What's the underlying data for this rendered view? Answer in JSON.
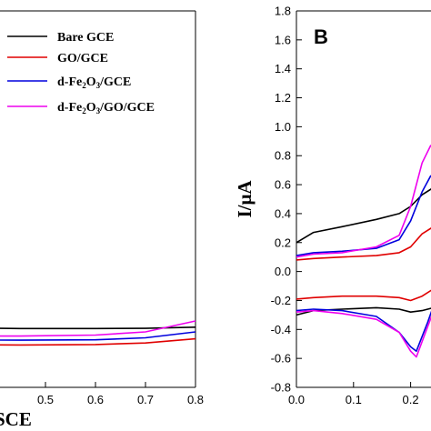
{
  "chart_data": [
    {
      "panel": "A",
      "type": "line",
      "xlabel_visible": "SCE",
      "xlim": [
        0.3,
        0.8
      ],
      "ylim": [
        -0.3,
        1.6
      ],
      "x_ticks": [
        "0.5",
        "0.6",
        "0.7",
        "0.8"
      ],
      "legend": {
        "placement": "top",
        "entries": [
          {
            "name": "Bare GCE",
            "color": "#000000"
          },
          {
            "name": "GO/GCE",
            "color": "#e00000"
          },
          {
            "name": "d-Fe2O3/GCE",
            "color": "#0000dd"
          },
          {
            "name": "d-Fe2O3/GO/GCE",
            "color": "#ee00ee"
          }
        ]
      },
      "series": [
        {
          "name": "Bare GCE",
          "color": "#000000",
          "x": [
            0.3,
            0.45,
            0.6,
            0.7,
            0.8
          ],
          "y": [
            0.0,
            -0.003,
            -0.003,
            -0.002,
            0.004
          ]
        },
        {
          "name": "GO/GCE",
          "color": "#e00000",
          "x": [
            0.3,
            0.45,
            0.6,
            0.7,
            0.8
          ],
          "y": [
            -0.085,
            -0.086,
            -0.084,
            -0.076,
            -0.055
          ]
        },
        {
          "name": "d-Fe2O3/GCE",
          "color": "#0000dd",
          "x": [
            0.3,
            0.45,
            0.6,
            0.7,
            0.8
          ],
          "y": [
            -0.06,
            -0.062,
            -0.06,
            -0.05,
            -0.02
          ]
        },
        {
          "name": "d-Fe2O3/GO/GCE",
          "color": "#ee00ee",
          "x": [
            0.3,
            0.45,
            0.6,
            0.7,
            0.8
          ],
          "y": [
            -0.04,
            -0.041,
            -0.036,
            -0.02,
            0.035
          ]
        }
      ]
    },
    {
      "panel": "B",
      "type": "line",
      "title": "B",
      "ylabel": "I/μA",
      "xlim": [
        0.0,
        0.25
      ],
      "ylim": [
        -0.8,
        1.8
      ],
      "x_ticks": [
        "0.0",
        "0.1",
        "0.2"
      ],
      "y_ticks": [
        "-0.8",
        "-0.6",
        "-0.4",
        "-0.2",
        "0.0",
        "0.2",
        "0.4",
        "0.6",
        "0.8",
        "1.0",
        "1.2",
        "1.4",
        "1.6",
        "1.8"
      ],
      "series": [
        {
          "name": "Bare GCE",
          "color": "#000000",
          "segment": "anodic",
          "x": [
            0.0,
            0.03,
            0.08,
            0.14,
            0.18,
            0.2,
            0.22,
            0.24
          ],
          "y": [
            0.2,
            0.27,
            0.31,
            0.36,
            0.4,
            0.45,
            0.53,
            0.58
          ]
        },
        {
          "name": "Bare GCE",
          "color": "#000000",
          "segment": "cathodic",
          "x": [
            0.24,
            0.22,
            0.2,
            0.18,
            0.14,
            0.08,
            0.03,
            0.0
          ],
          "y": [
            -0.25,
            -0.27,
            -0.28,
            -0.26,
            -0.25,
            -0.26,
            -0.27,
            -0.3
          ]
        },
        {
          "name": "GO/GCE",
          "color": "#e00000",
          "segment": "anodic",
          "x": [
            0.0,
            0.03,
            0.08,
            0.14,
            0.18,
            0.2,
            0.22,
            0.24
          ],
          "y": [
            0.08,
            0.09,
            0.1,
            0.11,
            0.13,
            0.17,
            0.26,
            0.31
          ]
        },
        {
          "name": "GO/GCE",
          "color": "#e00000",
          "segment": "cathodic",
          "x": [
            0.24,
            0.22,
            0.2,
            0.18,
            0.14,
            0.08,
            0.03,
            0.0
          ],
          "y": [
            -0.12,
            -0.17,
            -0.2,
            -0.18,
            -0.17,
            -0.17,
            -0.18,
            -0.19
          ]
        },
        {
          "name": "d-Fe2O3/GCE",
          "color": "#0000dd",
          "segment": "anodic",
          "x": [
            0.0,
            0.03,
            0.08,
            0.14,
            0.18,
            0.2,
            0.22,
            0.235,
            0.245
          ],
          "y": [
            0.11,
            0.13,
            0.14,
            0.16,
            0.22,
            0.35,
            0.55,
            0.66,
            0.62
          ]
        },
        {
          "name": "d-Fe2O3/GCE",
          "color": "#0000dd",
          "segment": "cathodic",
          "x": [
            0.245,
            0.23,
            0.21,
            0.2,
            0.18,
            0.14,
            0.08,
            0.03,
            0.0
          ],
          "y": [
            -0.18,
            -0.35,
            -0.55,
            -0.52,
            -0.42,
            -0.31,
            -0.27,
            -0.26,
            -0.27
          ]
        },
        {
          "name": "d-Fe2O3/GO/GCE",
          "color": "#ee00ee",
          "segment": "anodic",
          "x": [
            0.0,
            0.03,
            0.08,
            0.14,
            0.18,
            0.2,
            0.22,
            0.235,
            0.245
          ],
          "y": [
            0.1,
            0.12,
            0.13,
            0.17,
            0.25,
            0.45,
            0.75,
            0.87,
            0.84
          ]
        },
        {
          "name": "d-Fe2O3/GO/GCE",
          "color": "#ee00ee",
          "segment": "cathodic",
          "x": [
            0.245,
            0.23,
            0.21,
            0.2,
            0.18,
            0.14,
            0.08,
            0.03,
            0.0
          ],
          "y": [
            -0.22,
            -0.38,
            -0.59,
            -0.55,
            -0.42,
            -0.33,
            -0.29,
            -0.27,
            -0.28
          ]
        }
      ]
    }
  ],
  "legend_labels": {
    "bare": "Bare GCE",
    "go": "GO/GCE",
    "dfe_prefix": "d-Fe",
    "sub2": "2",
    "o": "O",
    "sub3": "3",
    "dfe_suffix": "/GCE",
    "dfe_go_suffix": "/GO/GCE"
  },
  "panel_a_xlabel": "SCE",
  "panel_b_letter": "B",
  "panel_b_ylabel": "I/μA"
}
